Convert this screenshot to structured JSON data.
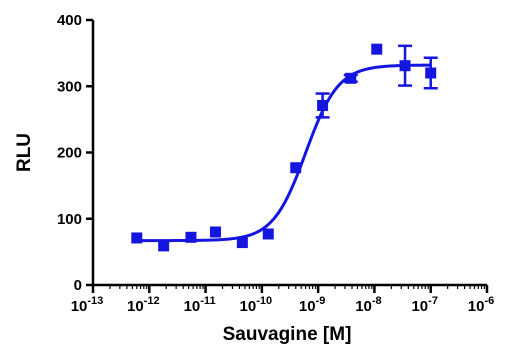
{
  "chart_data": {
    "type": "scatter",
    "xlabel": "Sauvagine [M]",
    "ylabel": "RLU",
    "x_scale": "log",
    "xlim": [
      1e-13,
      1e-06
    ],
    "ylim": [
      0,
      400
    ],
    "x_ticks": [
      {
        "value": 1e-13,
        "base": "10",
        "exp": "-13"
      },
      {
        "value": 1e-12,
        "base": "10",
        "exp": "-12"
      },
      {
        "value": 1e-11,
        "base": "10",
        "exp": "-11"
      },
      {
        "value": 1e-10,
        "base": "10",
        "exp": "-10"
      },
      {
        "value": 1e-09,
        "base": "10",
        "exp": "-9"
      },
      {
        "value": 1e-08,
        "base": "10",
        "exp": "-8"
      },
      {
        "value": 1e-07,
        "base": "10",
        "exp": "-7"
      },
      {
        "value": 1e-06,
        "base": "10",
        "exp": "-6"
      }
    ],
    "y_ticks": [
      0,
      100,
      200,
      300,
      400
    ],
    "grid": false,
    "color": "#1515e0",
    "series": [
      {
        "marker": "square",
        "x": [
          6e-13,
          1.8e-12,
          5.5e-12,
          1.5e-11,
          4.5e-11,
          1.3e-10,
          4e-10,
          1.2e-09,
          3.8e-09,
          1.1e-08,
          3.5e-08,
          1e-07
        ],
        "y": [
          71,
          59,
          72,
          80,
          64,
          77,
          177,
          271,
          312,
          356,
          331,
          320
        ],
        "error": [
          0,
          0,
          0,
          0,
          0,
          0,
          0,
          18,
          5,
          0,
          30,
          23
        ]
      }
    ],
    "fit_curve": {
      "model": "sigmoidal dose-response",
      "bottom": 67,
      "top": 332,
      "ec50": 6e-10,
      "hill": 1.5
    }
  }
}
